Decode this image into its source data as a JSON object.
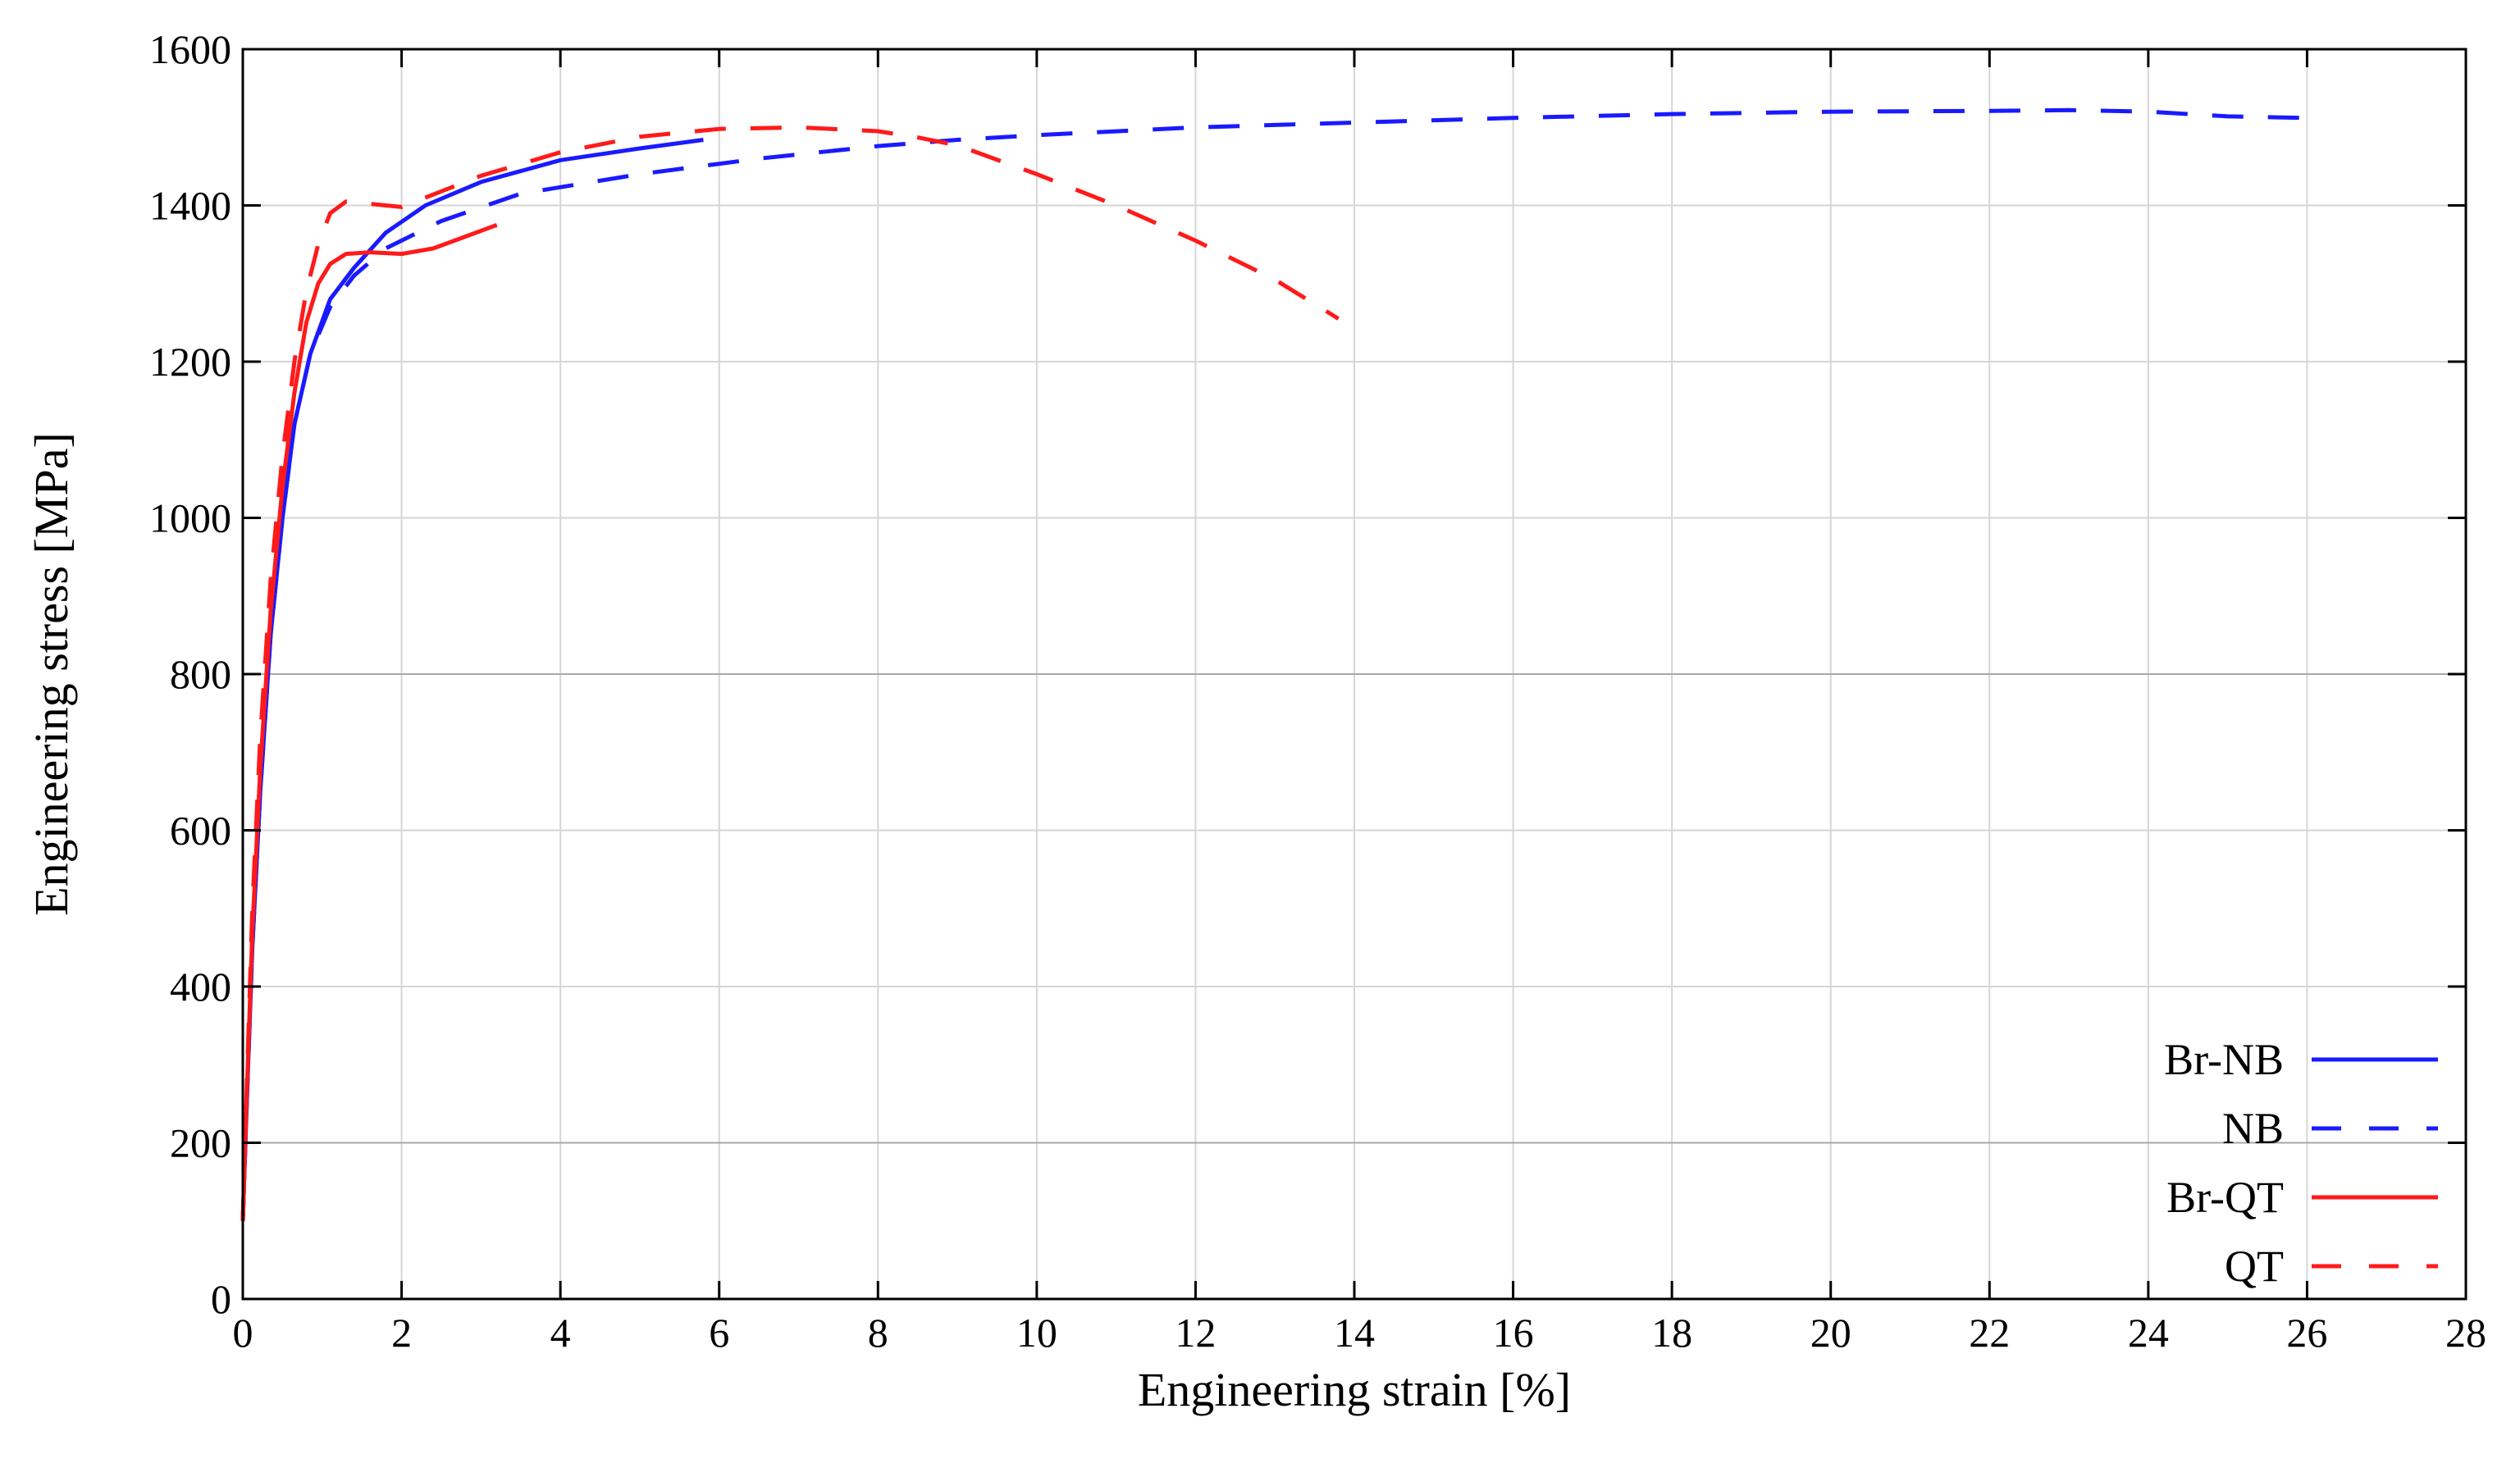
{
  "chart_data": {
    "type": "line",
    "title": "",
    "xlabel": "Engineering strain [%]",
    "ylabel": "Engineering stress [MPa]",
    "xlim": [
      0,
      28
    ],
    "ylim": [
      0,
      1600
    ],
    "xticks": [
      0,
      2,
      4,
      6,
      8,
      10,
      12,
      14,
      16,
      18,
      20,
      22,
      24,
      26,
      28
    ],
    "yticks": [
      0,
      200,
      400,
      600,
      800,
      1000,
      1200,
      1400,
      1600
    ],
    "grid": true,
    "legend_position": "bottom-right",
    "series": [
      {
        "name": "Br-NB",
        "color": "#1a1aff",
        "dash": "solid",
        "x": [
          0,
          0.05,
          0.12,
          0.22,
          0.35,
          0.5,
          0.65,
          0.85,
          1.1,
          1.4,
          1.8,
          2.3,
          3.0,
          4.0,
          5.0,
          5.8
        ],
        "y": [
          100,
          250,
          450,
          650,
          850,
          1000,
          1120,
          1210,
          1280,
          1320,
          1365,
          1400,
          1430,
          1458,
          1473,
          1484
        ]
      },
      {
        "name": "NB",
        "color": "#1a1aff",
        "dash": "dashed",
        "x": [
          0,
          0.05,
          0.12,
          0.22,
          0.35,
          0.5,
          0.65,
          0.85,
          1.1,
          1.4,
          1.8,
          2.5,
          3.5,
          5.0,
          6.5,
          8.0,
          9.0,
          10.0,
          12.0,
          14.0,
          16.0,
          18.0,
          20.0,
          22.0,
          23.0,
          24.0,
          25.0,
          26.0
        ],
        "y": [
          100,
          250,
          450,
          650,
          850,
          1000,
          1120,
          1210,
          1270,
          1310,
          1345,
          1380,
          1415,
          1440,
          1460,
          1476,
          1484,
          1490,
          1500,
          1506,
          1512,
          1517,
          1520,
          1521,
          1522,
          1520,
          1514,
          1512
        ]
      },
      {
        "name": "Br-QT",
        "color": "#ff1a1a",
        "dash": "solid",
        "x": [
          0,
          0.05,
          0.12,
          0.22,
          0.35,
          0.5,
          0.65,
          0.8,
          0.95,
          1.1,
          1.3,
          1.6,
          2.0,
          2.4,
          2.8,
          3.2
        ],
        "y": [
          100,
          260,
          470,
          680,
          880,
          1040,
          1160,
          1250,
          1300,
          1325,
          1338,
          1340,
          1338,
          1345,
          1360,
          1375
        ]
      },
      {
        "name": "QT",
        "color": "#ff1a1a",
        "dash": "dashed",
        "x": [
          0,
          0.05,
          0.12,
          0.22,
          0.35,
          0.5,
          0.65,
          0.8,
          0.95,
          1.1,
          1.3,
          1.6,
          2.0,
          3.0,
          4.0,
          5.0,
          6.0,
          7.0,
          8.0,
          8.5,
          9.0,
          10.0,
          11.0,
          12.0,
          13.0,
          13.8
        ],
        "y": [
          100,
          270,
          500,
          720,
          920,
          1080,
          1200,
          1290,
          1350,
          1390,
          1405,
          1402,
          1398,
          1438,
          1468,
          1488,
          1498,
          1500,
          1495,
          1487,
          1477,
          1440,
          1400,
          1355,
          1305,
          1255
        ]
      }
    ]
  }
}
